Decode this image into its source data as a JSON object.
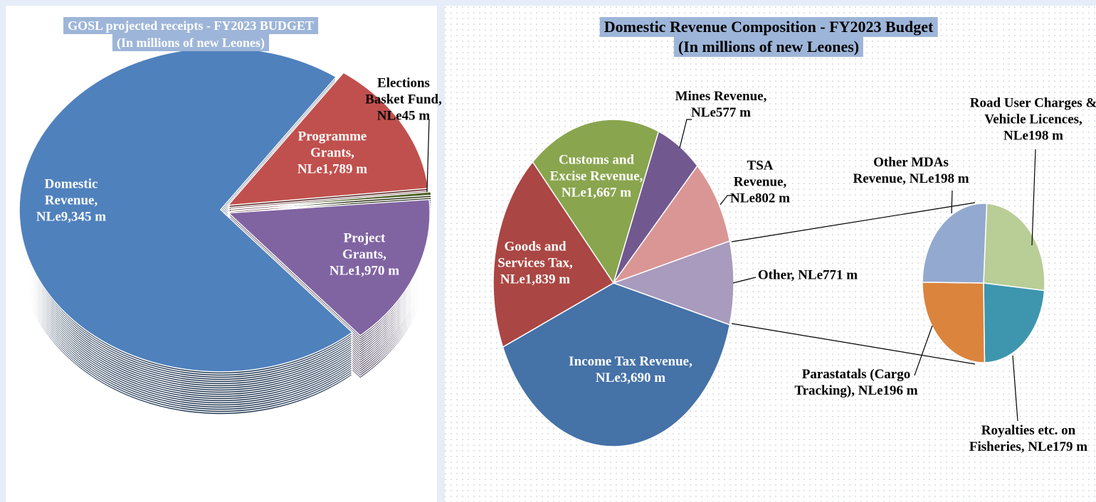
{
  "chart_data": [
    {
      "type": "pie",
      "title": "GOSL projected receipts - FY2023 BUDGET",
      "subtitle": "(In millions of new Leones)",
      "values": [
        1789,
        45,
        1970,
        9345
      ],
      "value_labels": [
        "Programme Grants, NLe1,789 m",
        "Elections Basket Fund, NLe45 m",
        "Project Grants, NLe1,970 m",
        "Domestic Revenue, NLe9,345 m"
      ],
      "colors": [
        "#c0504d",
        "#4f6228",
        "#8064a2",
        "#4f81bd"
      ]
    },
    {
      "type": "pie-of-pie",
      "title": "Domestic Revenue Composition - FY2023 Budget",
      "subtitle": "(In millions of new Leones)",
      "values": [
        577,
        802,
        771,
        3690,
        1839,
        1667
      ],
      "value_labels": [
        "Mines Revenue, NLe577 m",
        "TSA Revenue, NLe802 m",
        "Other, NLe771 m",
        "Income Tax Revenue, NLe3,690 m",
        "Goods and Services Tax, NLe1,839 m",
        "Customs and Excise Revenue, NLe1,667 m"
      ],
      "colors": [
        "#71588f",
        "#d99694",
        "#a99bbd",
        "#4572a7",
        "#aa4643",
        "#89a54e"
      ],
      "sub_values": [
        198,
        179,
        196,
        198
      ],
      "sub_value_labels": [
        "Road User Charges & Vehicle Licences, NLe198 m",
        "Royalties etc. on Fisheries, NLe179 m",
        "Parastatals (Cargo Tracking), NLe196 m",
        "Other MDAs Revenue, NLe198 m"
      ],
      "sub_colors": [
        "#b9cd96",
        "#3d96ae",
        "#db843d",
        "#93a9cf"
      ]
    }
  ]
}
